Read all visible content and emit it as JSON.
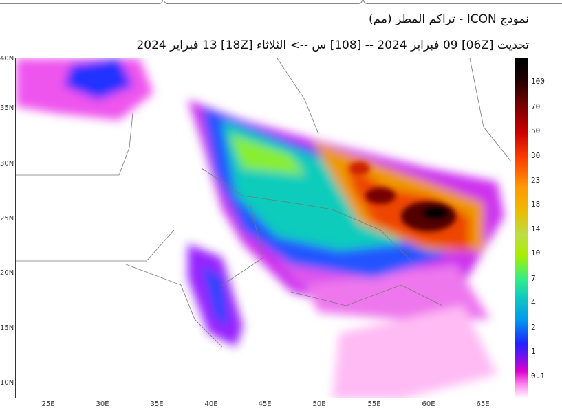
{
  "header": {
    "title": "نموذج ICON  - تراكم المطر (مم)",
    "subtitle": "تحديث [06Z] 09 فبراير 2024 -- [108] س --> الثلاثاء [18Z] 13 فبراير 2024"
  },
  "map": {
    "lat_labels": [
      "40N",
      "35N",
      "30N",
      "25N",
      "20N",
      "15N",
      "10N"
    ],
    "lon_labels": [
      "25E",
      "30E",
      "35E",
      "40E",
      "45E",
      "50E",
      "55E",
      "60E",
      "65E"
    ]
  },
  "colorbar": {
    "labels": [
      "100",
      "70",
      "50",
      "30",
      "23",
      "18",
      "14",
      "10",
      "7",
      "4",
      "2",
      "1",
      "0.1"
    ],
    "colors": [
      "#000000",
      "#770000",
      "#cc0000",
      "#ff4400",
      "#ff9900",
      "#eebb00",
      "#aaee00",
      "#33ee88",
      "#11ccbb",
      "#0099ee",
      "#2222ff",
      "#7711ee",
      "#dd00cc",
      "#ff88ee",
      "#ffffff"
    ]
  }
}
